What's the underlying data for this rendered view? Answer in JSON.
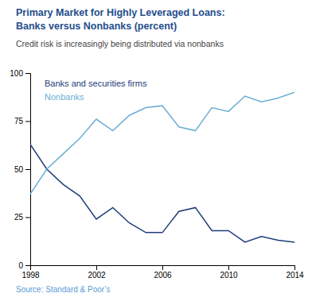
{
  "chart_data": {
    "type": "line",
    "title": [
      "Primary Market for Highly Leveraged Loans:",
      "Banks versus Nonbanks (percent)"
    ],
    "subtitle": "Credit risk is increasingly being distributed via nonbanks",
    "annotations": [
      "Source: Standard & Poor’s"
    ],
    "x": [
      1998,
      1999,
      2000,
      2001,
      2002,
      2003,
      2004,
      2005,
      2006,
      2007,
      2008,
      2009,
      2010,
      2011,
      2012,
      2013,
      2014
    ],
    "series": [
      {
        "name": "Banks and securities firms",
        "color": "#1f3d7a",
        "values": [
          63,
          50,
          42,
          36,
          24,
          30,
          22,
          17,
          17,
          28,
          30,
          18,
          18,
          12,
          15,
          13,
          12
        ]
      },
      {
        "name": "Nonbanks",
        "color": "#6baed6",
        "values": [
          37,
          50,
          58,
          66,
          76,
          70,
          78,
          82,
          83,
          72,
          70,
          82,
          80,
          88,
          85,
          87,
          90
        ]
      }
    ],
    "xlim": [
      1998,
      2014
    ],
    "xticks": [
      1998,
      2002,
      2006,
      2010,
      2014
    ],
    "ylim": [
      0,
      100
    ],
    "yticks": [
      0,
      25,
      50,
      75,
      100
    ],
    "grid": false,
    "legend": "upper left"
  }
}
